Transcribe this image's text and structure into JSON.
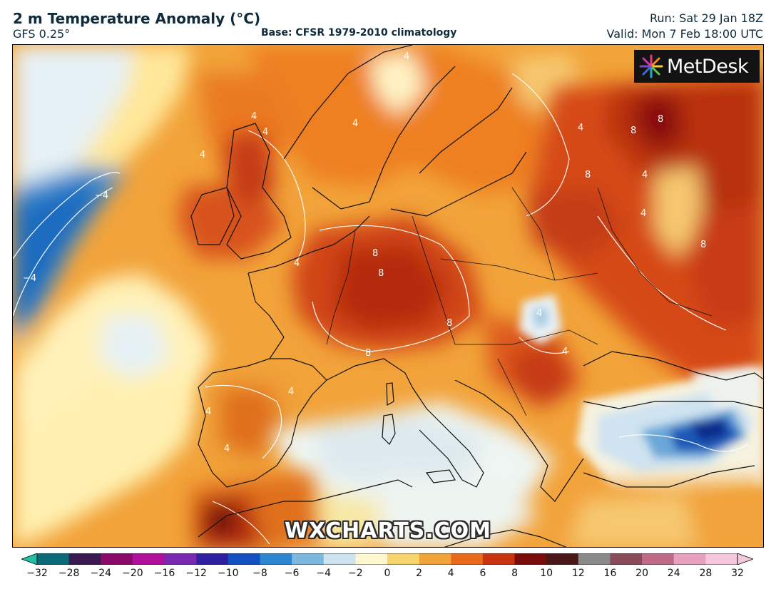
{
  "header": {
    "title": "2 m Temperature Anomaly (°C)",
    "model": "GFS 0.25°",
    "base": "Base: CFSR 1979-2010 climatology",
    "run": "Run: Sat 29 Jan 18Z",
    "valid": "Valid: Mon 7 Feb 18:00 UTC"
  },
  "logo": {
    "text": "MetDesk",
    "icon": "metdesk-starburst-icon"
  },
  "watermark": "WXCHARTS.COM",
  "colorbar": {
    "ticks": [
      "−32",
      "−28",
      "−24",
      "−20",
      "−16",
      "−12",
      "−10",
      "−8",
      "−6",
      "−4",
      "−2",
      "0",
      "2",
      "4",
      "6",
      "8",
      "10",
      "12",
      "16",
      "20",
      "24",
      "28",
      "32"
    ],
    "colors": [
      "#20c0a0",
      "#0a6a78",
      "#3a1850",
      "#8a0a6a",
      "#b0109a",
      "#7a2ab0",
      "#3020a0",
      "#1050c0",
      "#2f86d0",
      "#7ab8e0",
      "#cde3f0",
      "#fff7cf",
      "#f6d56e",
      "#f2a33a",
      "#e86a1a",
      "#c93410",
      "#7a0c0c",
      "#4a1818",
      "#8a8a8a",
      "#8a4a5a",
      "#c06a8a",
      "#e8a0c0",
      "#f6c8dc"
    ]
  },
  "map": {
    "contour_labels": [
      "4",
      "4",
      "4",
      "4",
      "4",
      "4",
      "4",
      "4",
      "4",
      "8",
      "8",
      "8",
      "8",
      "8",
      "8",
      "8",
      "8",
      "−4",
      "−4",
      "4",
      "4",
      "4",
      "4",
      "4"
    ]
  }
}
